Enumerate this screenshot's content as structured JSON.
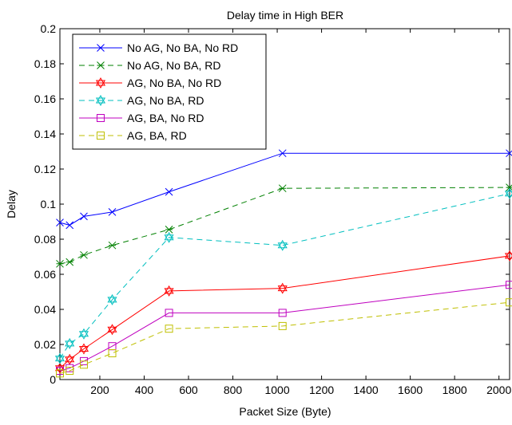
{
  "chart_data": {
    "type": "line",
    "title": "Delay time in High BER",
    "xlabel": "Packet Size (Byte)",
    "ylabel": "Delay",
    "xlim": [
      20,
      2048
    ],
    "ylim": [
      0,
      0.2
    ],
    "x_ticks": [
      200,
      400,
      600,
      800,
      1000,
      1200,
      1400,
      1600,
      1800,
      2000
    ],
    "x_tick_labels": [
      "200",
      "400",
      "600",
      "800",
      "1000",
      "1200",
      "1400",
      "1600",
      "1800",
      "2000"
    ],
    "y_ticks": [
      0,
      0.02,
      0.04,
      0.06,
      0.08,
      0.1,
      0.12,
      0.14,
      0.16,
      0.18,
      0.2
    ],
    "y_tick_labels": [
      "0",
      "0.02",
      "0.04",
      "0.06",
      "0.08",
      "0.1",
      "0.12",
      "0.14",
      "0.16",
      "0.18",
      "0.2"
    ],
    "grid": false,
    "legend_position": "top-left",
    "x": [
      20,
      64,
      128,
      256,
      512,
      1024,
      2048
    ],
    "series": [
      {
        "name": "No AG, No BA, No RD",
        "color": "#0000ff",
        "dash": "solid",
        "marker": "x",
        "values": [
          0.0895,
          0.088,
          0.093,
          0.0955,
          0.107,
          0.129,
          0.129
        ]
      },
      {
        "name": "No AG, No BA, RD",
        "color": "#008000",
        "dash": "dashed",
        "marker": "asterisk",
        "values": [
          0.066,
          0.067,
          0.071,
          0.0765,
          0.0855,
          0.109,
          0.1095
        ]
      },
      {
        "name": "AG, No BA, No RD",
        "color": "#ff0000",
        "dash": "solid",
        "marker": "hexagram",
        "values": [
          0.0065,
          0.0115,
          0.0175,
          0.0285,
          0.0505,
          0.052,
          0.0705
        ]
      },
      {
        "name": "AG, No BA, RD",
        "color": "#00bfbf",
        "dash": "dashed",
        "marker": "hexagram",
        "values": [
          0.012,
          0.0205,
          0.026,
          0.0455,
          0.081,
          0.0765,
          0.106
        ]
      },
      {
        "name": "AG, BA, No RD",
        "color": "#bf00bf",
        "dash": "solid",
        "marker": "square",
        "values": [
          0.005,
          0.0065,
          0.0105,
          0.019,
          0.038,
          0.038,
          0.054
        ]
      },
      {
        "name": "AG, BA, RD",
        "color": "#bfbf00",
        "dash": "dashed",
        "marker": "square",
        "values": [
          0.0035,
          0.005,
          0.0085,
          0.015,
          0.029,
          0.0305,
          0.044
        ]
      }
    ]
  }
}
